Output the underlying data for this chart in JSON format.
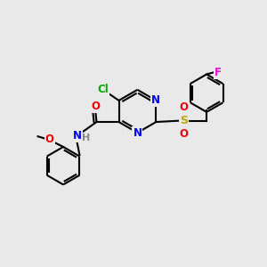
{
  "background_color": "#e9e9e9",
  "bond_color": "#000000",
  "atom_colors": {
    "N": "#0000ee",
    "O": "#ee0000",
    "Cl": "#00aa00",
    "S": "#bbaa00",
    "F": "#ee00ee",
    "H": "#888888",
    "C": "#000000"
  },
  "figsize": [
    3.0,
    3.0
  ],
  "dpi": 100
}
